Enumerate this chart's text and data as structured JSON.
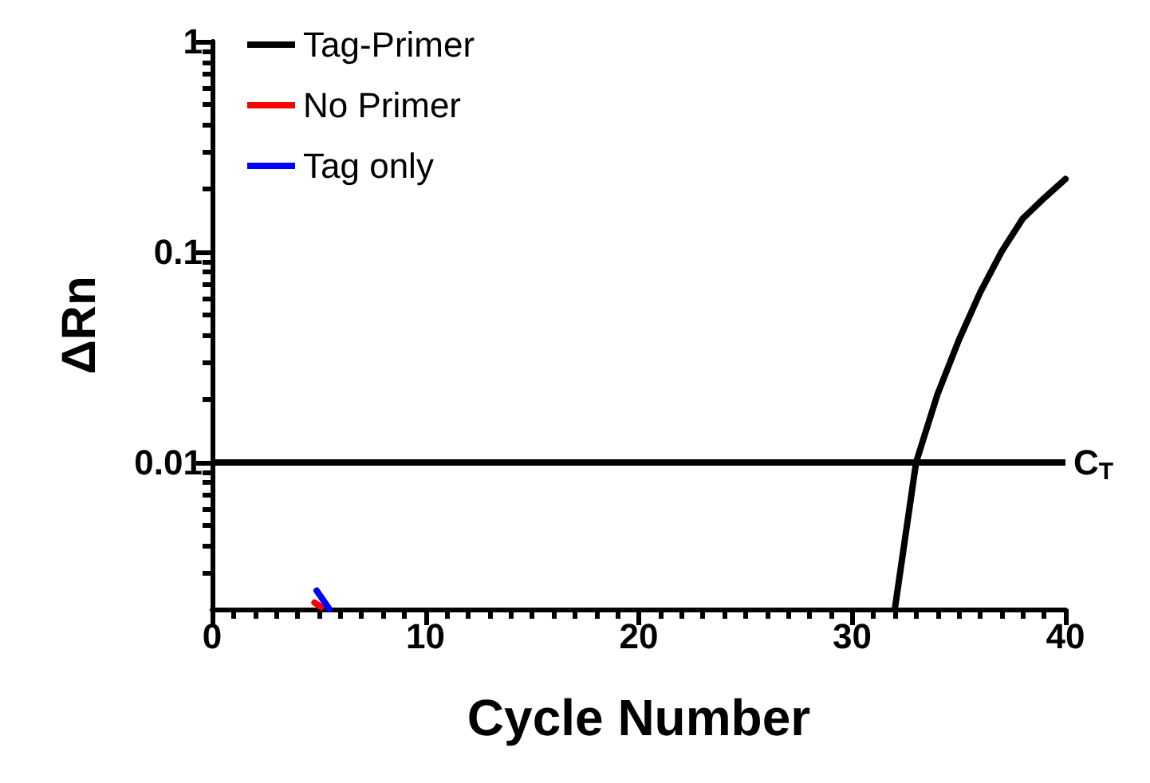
{
  "chart_data": {
    "type": "line",
    "xlabel": "Cycle Number",
    "ylabel": "ΔRn",
    "log": "y",
    "xlim": [
      0,
      40
    ],
    "ylim": [
      0.002,
      1
    ],
    "xticks": [
      0,
      {
        "value": 1,
        "label": null
      },
      {
        "value": 2,
        "label": null
      },
      {
        "value": 3,
        "label": null
      },
      {
        "value": 4,
        "label": null
      },
      {
        "value": 5,
        "label": null
      },
      {
        "value": 6,
        "label": null
      },
      {
        "value": 7,
        "label": null
      },
      {
        "value": 8,
        "label": null
      },
      {
        "value": 9,
        "label": null
      },
      10,
      {
        "value": 11,
        "label": null
      },
      {
        "value": 12,
        "label": null
      },
      {
        "value": 13,
        "label": null
      },
      {
        "value": 14,
        "label": null
      },
      {
        "value": 15,
        "label": null
      },
      {
        "value": 16,
        "label": null
      },
      {
        "value": 17,
        "label": null
      },
      {
        "value": 18,
        "label": null
      },
      {
        "value": 19,
        "label": null
      },
      20,
      {
        "value": 21,
        "label": null
      },
      {
        "value": 22,
        "label": null
      },
      {
        "value": 23,
        "label": null
      },
      {
        "value": 24,
        "label": null
      },
      {
        "value": 25,
        "label": null
      },
      {
        "value": 26,
        "label": null
      },
      {
        "value": 27,
        "label": null
      },
      {
        "value": 28,
        "label": null
      },
      {
        "value": 29,
        "label": null
      },
      30,
      {
        "value": 31,
        "label": null
      },
      {
        "value": 32,
        "label": null
      },
      {
        "value": 33,
        "label": null
      },
      {
        "value": 34,
        "label": null
      },
      {
        "value": 35,
        "label": null
      },
      {
        "value": 36,
        "label": null
      },
      {
        "value": 37,
        "label": null
      },
      {
        "value": 38,
        "label": null
      },
      {
        "value": 39,
        "label": null
      },
      40
    ],
    "yticks": [
      {
        "value": 0.003,
        "label": null
      },
      {
        "value": 0.004,
        "label": null
      },
      {
        "value": 0.005,
        "label": null
      },
      {
        "value": 0.006,
        "label": null
      },
      {
        "value": 0.007,
        "label": null
      },
      {
        "value": 0.008,
        "label": null
      },
      {
        "value": 0.009,
        "label": null
      },
      0.01,
      {
        "value": 0.02,
        "label": null
      },
      {
        "value": 0.03,
        "label": null
      },
      {
        "value": 0.04,
        "label": null
      },
      {
        "value": 0.05,
        "label": null
      },
      {
        "value": 0.06,
        "label": null
      },
      {
        "value": 0.07,
        "label": null
      },
      {
        "value": 0.08,
        "label": null
      },
      {
        "value": 0.09,
        "label": null
      },
      0.1,
      {
        "value": 0.2,
        "label": null
      },
      {
        "value": 0.3,
        "label": null
      },
      {
        "value": 0.4,
        "label": null
      },
      {
        "value": 0.5,
        "label": null
      },
      {
        "value": 0.6,
        "label": null
      },
      {
        "value": 0.7,
        "label": null
      },
      {
        "value": 0.8,
        "label": null
      },
      {
        "value": 0.9,
        "label": null
      },
      1
    ],
    "grid": false,
    "legend": "top left",
    "marker": "none",
    "line_style": "solid",
    "ref_lines": [
      {
        "axis": "y",
        "value": 0.01,
        "label": "C$_{T}$",
        "color": "#000000"
      }
    ],
    "series": [
      {
        "name": "Tag-Primer",
        "color": "#000000",
        "x": [
          32,
          33,
          34,
          35,
          36,
          37,
          38,
          39,
          40
        ],
        "values": [
          0.002,
          0.01,
          0.021,
          0.038,
          0.064,
          0.1,
          0.144,
          0.18,
          0.222
        ]
      },
      {
        "name": "No Primer",
        "color": "#ff0000",
        "x": [
          4.8,
          5.1
        ],
        "values": [
          0.00215,
          0.00205
        ]
      },
      {
        "name": "Tag only",
        "color": "#0000ff",
        "x": [
          4.9,
          5.5
        ],
        "values": [
          0.00245,
          0.002
        ]
      }
    ]
  }
}
